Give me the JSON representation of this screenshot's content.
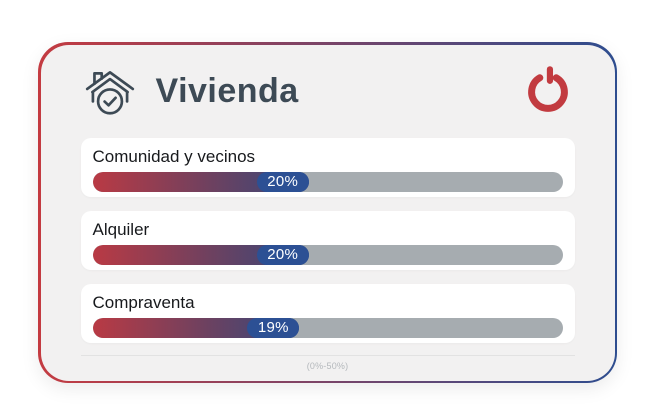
{
  "theme": {
    "border-left": "#c43b41",
    "border-right": "#2e4d8f",
    "card-bg": "#f2f1f1",
    "row-bg": "#ffffff",
    "track": "#a6acb0",
    "fill-start": "#b93a44",
    "fill-mid": "#6d4160",
    "fill-end": "#34497c",
    "pill": "#2c5094",
    "title-color": "#3d4a55",
    "logo-red": "#c23b40",
    "icon-stroke": "#3d4a55"
  },
  "header": {
    "title": "Vivienda",
    "icon_name": "house-check-icon",
    "logo_name": "power-logo-icon"
  },
  "footer": {
    "scale_label": "(0%-50%)"
  },
  "chart_data": {
    "type": "bar",
    "orientation": "horizontal",
    "title": "Vivienda",
    "categories": [
      "Comunidad y vecinos",
      "Alquiler",
      "Compraventa"
    ],
    "values": [
      20,
      20,
      19
    ],
    "value_labels": [
      "20%",
      "20%",
      "19%"
    ],
    "xlim": [
      0,
      50
    ],
    "axis_note": "(0%-50%)",
    "legend": false,
    "grid": false,
    "pill_allowance_pct": 6
  }
}
